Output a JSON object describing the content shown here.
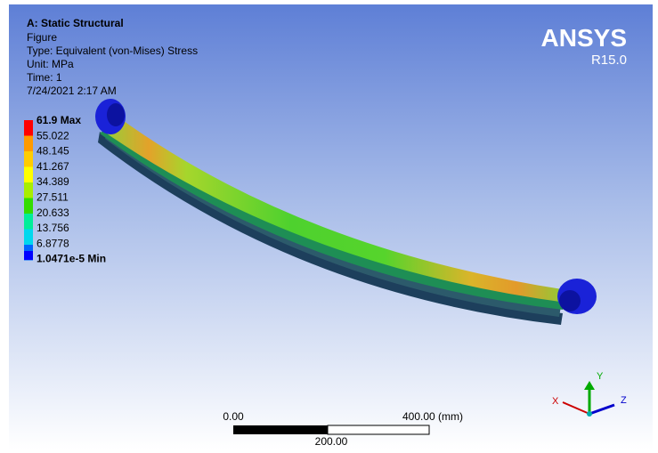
{
  "header": {
    "analysis": "A: Static Structural",
    "figure": "Figure",
    "type": "Type: Equivalent (von-Mises) Stress",
    "unit": "Unit: MPa",
    "time": "Time: 1",
    "date": "7/24/2021 2:17 AM"
  },
  "logo": {
    "name": "ANSYS",
    "version": "R15.0"
  },
  "legend": {
    "labels": [
      "61.9 Max",
      "55.022",
      "48.145",
      "41.267",
      "34.389",
      "27.511",
      "20.633",
      "13.756",
      "6.8778",
      "1.0471e-5 Min"
    ]
  },
  "scale_bar": {
    "start": "0.00",
    "end": "400.00 (mm)",
    "middle": "200.00"
  },
  "triad": {
    "x": "X",
    "y": "Y",
    "z": "Z"
  }
}
